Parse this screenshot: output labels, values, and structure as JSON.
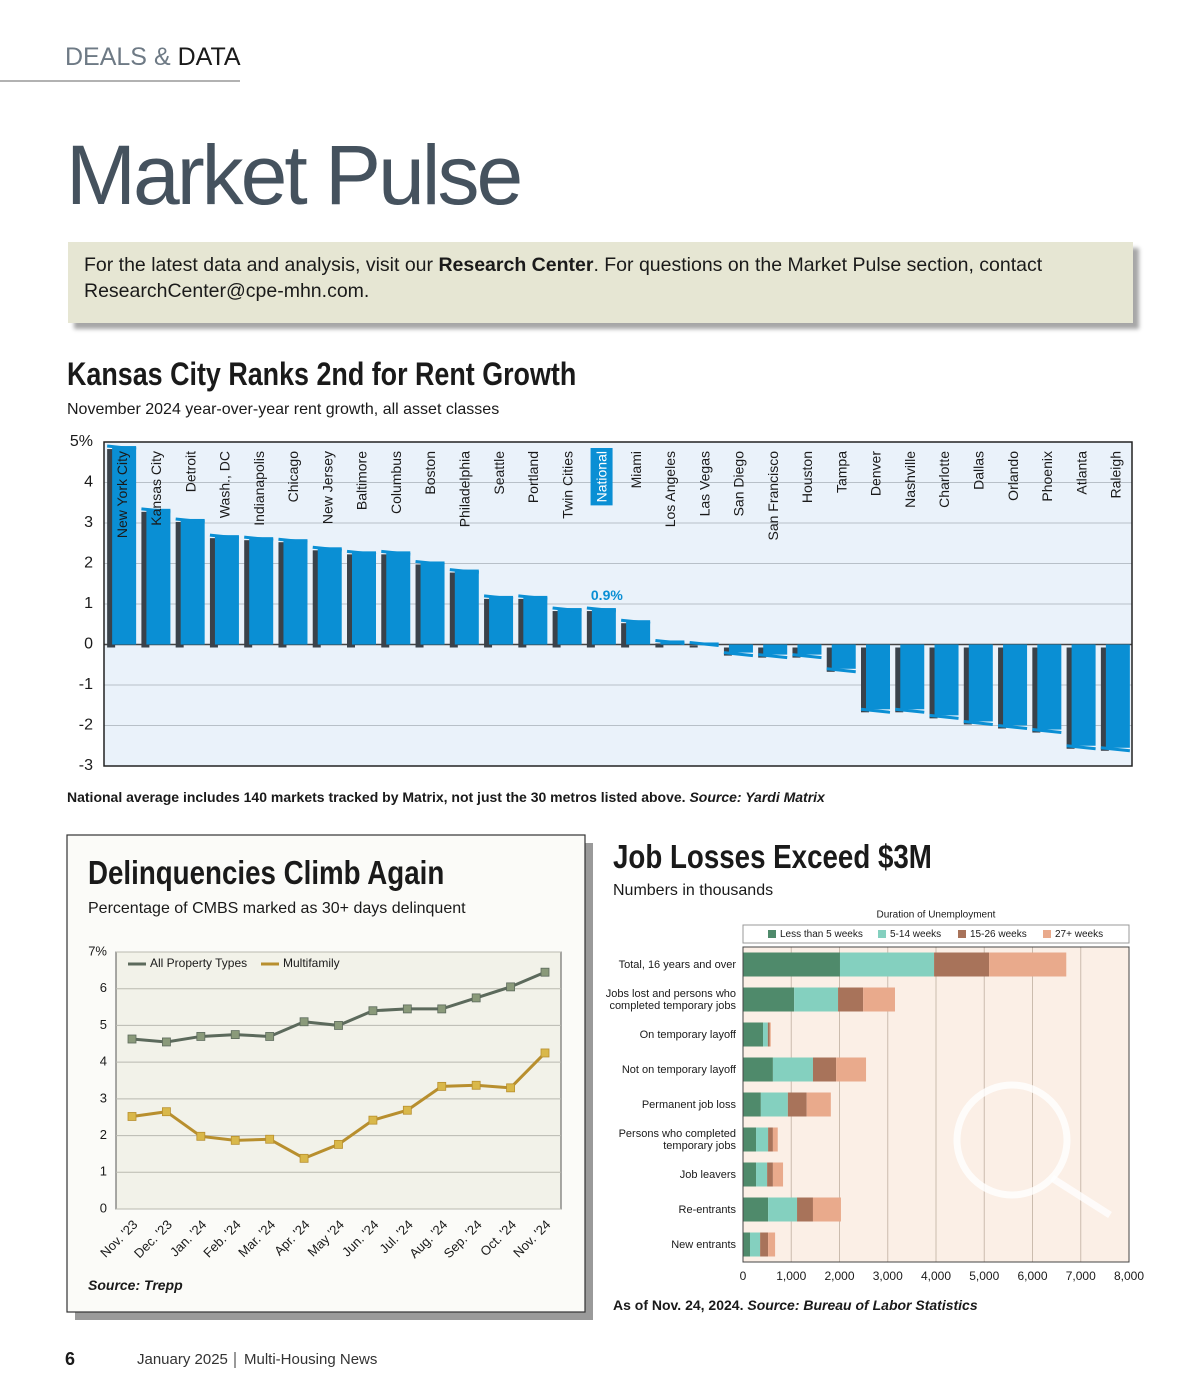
{
  "header": {
    "left": "DEALS",
    "amp": "&",
    "right": "DATA"
  },
  "title": "Market Pulse",
  "notice": {
    "before": "For the latest data and analysis, visit our ",
    "link": "Research Center",
    "after": ". For questions on the Market Pulse section, contact ResearchCenter@cpe-mhn.com."
  },
  "chart_data": [
    {
      "type": "bar",
      "title": "Kansas City Ranks 2nd for Rent Growth",
      "subtitle": "November 2024 year-over-year rent growth, all asset classes",
      "categories": [
        "New York City",
        "Kansas City",
        "Detroit",
        "Wash., DC",
        "Indianapolis",
        "Chicago",
        "New Jersey",
        "Baltimore",
        "Columbus",
        "Boston",
        "Philadelphia",
        "Seattle",
        "Portland",
        "Twin Cities",
        "National",
        "Miami",
        "Los Angeles",
        "Las Vegas",
        "San Diego",
        "San Francisco",
        "Houston",
        "Tampa",
        "Denver",
        "Nashville",
        "Charlotte",
        "Dallas",
        "Orlando",
        "Phoenix",
        "Atlanta",
        "Raleigh"
      ],
      "values": [
        4.9,
        3.35,
        3.1,
        2.7,
        2.65,
        2.6,
        2.4,
        2.3,
        2.3,
        2.05,
        1.85,
        1.2,
        1.2,
        0.9,
        0.9,
        0.6,
        0.1,
        0.05,
        -0.2,
        -0.25,
        -0.25,
        -0.6,
        -1.6,
        -1.6,
        -1.75,
        -1.9,
        -2.0,
        -2.1,
        -2.5,
        -2.55
      ],
      "value_labels": [
        null,
        null,
        null,
        null,
        null,
        null,
        null,
        null,
        null,
        null,
        null,
        null,
        null,
        null,
        "0.9%",
        null,
        null,
        null,
        null,
        null,
        null,
        null,
        null,
        null,
        null,
        null,
        null,
        null,
        null,
        null
      ],
      "color": "#0a8fd4",
      "highlight": 14,
      "ylim": [
        -3,
        5
      ],
      "yticks": [
        -3,
        -2,
        -1,
        0,
        1,
        2,
        3,
        4,
        {
          "value": 5,
          "label": "5%"
        }
      ],
      "grid": true,
      "note": "National average includes 140 markets tracked by Matrix, not just the 30 metros listed above.",
      "source": "Source: Yardi Matrix"
    },
    {
      "type": "line",
      "title": "Delinquencies Climb Again",
      "subtitle": "Percentage of CMBS marked as 30+ days delinquent",
      "categories": [
        "Nov. '23",
        "Dec. '23",
        "Jan. '24",
        "Feb. '24",
        "Mar. '24",
        "Apr. '24",
        "May '24",
        "Jun. '24",
        "Jul. '24",
        "Aug. '24",
        "Sep. '24",
        "Oct. '24",
        "Nov. '24"
      ],
      "series": [
        {
          "name": "All Property Types",
          "color": "#5c6a5c",
          "marker_color": "#8a9a7a",
          "values": [
            4.63,
            4.55,
            4.7,
            4.75,
            4.7,
            5.1,
            5.0,
            5.4,
            5.45,
            5.45,
            5.75,
            6.05,
            6.45
          ]
        },
        {
          "name": "Multifamily",
          "color": "#b88f2e",
          "marker_color": "#d9b84a",
          "values": [
            2.52,
            2.65,
            1.98,
            1.87,
            1.9,
            1.38,
            1.76,
            2.42,
            2.69,
            3.34,
            3.37,
            3.3,
            4.25
          ]
        }
      ],
      "ylim": [
        0,
        7
      ],
      "yticks": [
        0,
        1,
        2,
        3,
        4,
        5,
        6,
        {
          "value": 7,
          "label": "7%"
        }
      ],
      "grid": true,
      "legend": "top-left",
      "source": "Source: Trepp"
    },
    {
      "type": "bar",
      "horizontal": true,
      "stacked": true,
      "title": "Job Losses Exceed $3M",
      "subtitle": "Numbers in thousands",
      "legend_title": "Duration of Unemployment",
      "categories": [
        "Total, 16 years and over",
        "Jobs lost and persons who completed temporary jobs",
        "On temporary layoff",
        "Not on temporary layoff",
        "Permanent job loss",
        "Persons who completed temporary jobs",
        "Job leavers",
        "Re-entrants",
        "New entrants"
      ],
      "series": [
        {
          "name": "Less than 5 weeks",
          "color": "#4f8a6b",
          "values": [
            2010,
            1060,
            415,
            620,
            370,
            270,
            270,
            520,
            145
          ]
        },
        {
          "name": "5-14 weeks",
          "color": "#84d0bf",
          "values": [
            1950,
            910,
            100,
            830,
            560,
            250,
            230,
            600,
            210
          ]
        },
        {
          "name": "15-26 weeks",
          "color": "#a8735a",
          "values": [
            1140,
            520,
            40,
            480,
            390,
            100,
            120,
            330,
            165
          ]
        },
        {
          "name": "27+ weeks",
          "color": "#e9aa8c",
          "values": [
            1600,
            660,
            20,
            620,
            500,
            100,
            210,
            580,
            145
          ]
        }
      ],
      "xlim": [
        0,
        8000
      ],
      "xticks": [
        0,
        {
          "value": 1000,
          "label": "1,000"
        },
        {
          "value": 2000,
          "label": "2,000"
        },
        {
          "value": 3000,
          "label": "3,000"
        },
        {
          "value": 4000,
          "label": "4,000"
        },
        {
          "value": 5000,
          "label": "5,000"
        },
        {
          "value": 6000,
          "label": "6,000"
        },
        {
          "value": 7000,
          "label": "7,000"
        },
        {
          "value": 8000,
          "label": "8,000"
        }
      ],
      "grid": true,
      "legend": "top",
      "note": "As of Nov. 24, 2024.",
      "source": "Source: Bureau of Labor Statistics"
    }
  ],
  "footer": {
    "page": "6",
    "issue": "January 2025",
    "publication": "Multi-Housing News"
  }
}
